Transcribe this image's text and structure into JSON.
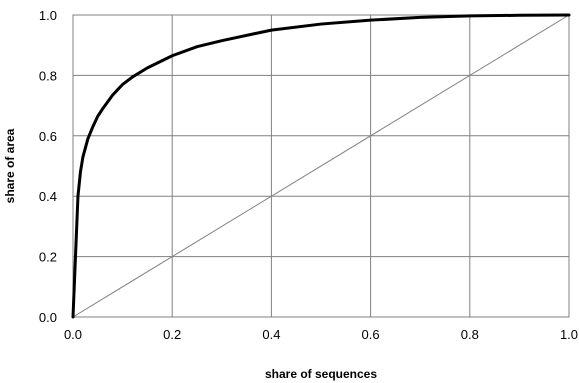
{
  "chart_data": {
    "type": "line",
    "xlabel": "share of sequences",
    "ylabel": "share of area",
    "xlim": [
      0,
      1
    ],
    "ylim": [
      0,
      1
    ],
    "x_ticks": [
      "0.0",
      "0.2",
      "0.4",
      "0.6",
      "0.8",
      "1.0"
    ],
    "y_ticks": [
      "0.0",
      "0.2",
      "0.4",
      "0.6",
      "0.8",
      "1.0"
    ],
    "grid": true,
    "legend": "none",
    "series": [
      {
        "color": "#000000",
        "x": [
          0,
          0.005,
          0.01,
          0.015,
          0.02,
          0.03,
          0.04,
          0.05,
          0.06,
          0.08,
          0.1,
          0.12,
          0.15,
          0.2,
          0.25,
          0.3,
          0.4,
          0.5,
          0.6,
          0.7,
          0.8,
          0.9,
          1.0
        ],
        "y": [
          0,
          0.2,
          0.4,
          0.48,
          0.53,
          0.59,
          0.63,
          0.665,
          0.69,
          0.735,
          0.77,
          0.795,
          0.825,
          0.865,
          0.895,
          0.915,
          0.95,
          0.97,
          0.983,
          0.992,
          0.997,
          0.999,
          1.0
        ]
      },
      {
        "color": "#808080",
        "x": [
          0,
          1
        ],
        "y": [
          0,
          1
        ]
      }
    ]
  }
}
